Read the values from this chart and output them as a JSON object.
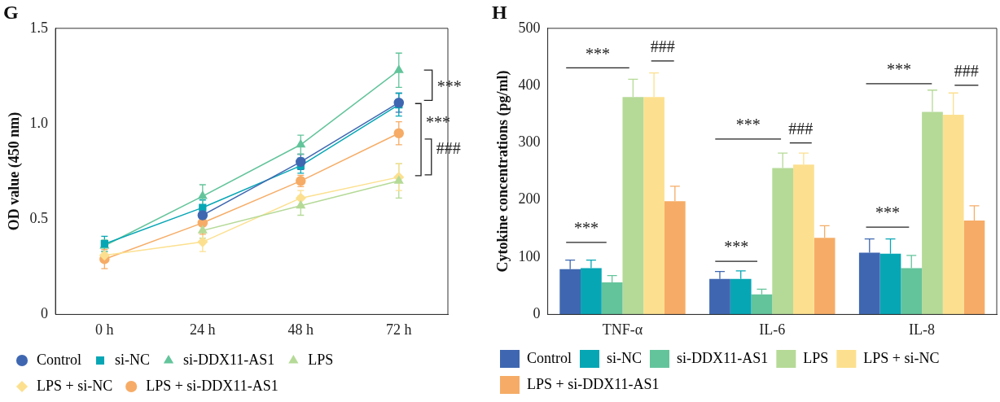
{
  "chart_data": [
    {
      "type": "line",
      "title": "G",
      "ylabel": "OD value (450 nm)",
      "categories": [
        "0 h",
        "24 h",
        "48 h",
        "72 h"
      ],
      "ylim": [
        0,
        1.5
      ],
      "yticks": [
        0,
        0.5,
        {
          "value": 1,
          "label": "1.0"
        },
        1.5
      ],
      "grid": false,
      "legend": "bottom",
      "line_style": "solid",
      "series": [
        {
          "name": "Control",
          "color": "#3f67b1",
          "marker": "circle",
          "values": [
            null,
            0.52,
            0.8,
            1.11
          ],
          "errors": [
            null,
            null,
            0.04,
            0.05
          ]
        },
        {
          "name": "si-NC",
          "color": "#07a6b5",
          "marker": "square",
          "values": [
            0.37,
            0.56,
            0.78,
            1.1
          ],
          "errors": [
            0.04,
            0.04,
            0.04,
            0.06
          ]
        },
        {
          "name": "si-DDX11-AS1",
          "color": "#63c49b",
          "marker": "triangle",
          "values": [
            0.36,
            0.62,
            0.89,
            1.28
          ],
          "errors": [
            0.03,
            0.06,
            0.05,
            0.09
          ]
        },
        {
          "name": "LPS",
          "color": "#b5da97",
          "marker": "triangle",
          "values": [
            null,
            0.44,
            0.57,
            0.7
          ],
          "errors": [
            null,
            0.04,
            0.05,
            0.09
          ]
        },
        {
          "name": "LPS + si-NC",
          "color": "#fce08f",
          "marker": "diamond",
          "values": [
            0.31,
            0.38,
            0.61,
            0.72
          ],
          "errors": [
            null,
            0.05,
            0.04,
            0.07
          ]
        },
        {
          "name": "LPS + si-DDX11-AS1",
          "color": "#f6ac66",
          "marker": "circle",
          "values": [
            0.29,
            0.48,
            0.7,
            0.95
          ],
          "errors": [
            0.05,
            0.06,
            0.03,
            0.06
          ]
        }
      ],
      "annotations": [
        {
          "text": "***",
          "x": "72 h",
          "y": 1.19
        },
        {
          "text": "***",
          "x": "72 h",
          "y": 1.0
        },
        "###"
      ]
    },
    {
      "type": "bar",
      "title": "H",
      "ylabel": "Cytokine concentrations (pg/ml)",
      "categories": [
        "TNF-α",
        "IL-6",
        "IL-8"
      ],
      "ylim": [
        0,
        500
      ],
      "yticks": [
        0,
        100,
        200,
        300,
        400,
        500
      ],
      "grid": false,
      "legend": "bottom",
      "series": [
        {
          "name": "Control",
          "color": "#3f67b1",
          "values": [
            79,
            62,
            108
          ],
          "errors": [
            16,
            13,
            24
          ]
        },
        {
          "name": "si-NC",
          "color": "#07a6b5",
          "values": [
            81,
            62,
            106
          ],
          "errors": [
            14,
            14,
            26
          ]
        },
        {
          "name": "si-DDX11-AS1",
          "color": "#63c49b",
          "values": [
            56,
            35,
            81
          ],
          "errors": [
            12,
            9,
            22
          ]
        },
        {
          "name": "LPS",
          "color": "#b5da97",
          "values": [
            380,
            256,
            354
          ],
          "errors": [
            31,
            26,
            38
          ]
        },
        {
          "name": "LPS + si-NC",
          "color": "#fce08f",
          "values": [
            380,
            262,
            349
          ],
          "errors": [
            42,
            20,
            38
          ]
        },
        {
          "name": "LPS + si-DDX11-AS1",
          "color": "#f6ac66",
          "values": [
            198,
            134,
            164
          ],
          "errors": [
            26,
            21,
            26
          ]
        }
      ],
      "annotations": [
        "***",
        "***",
        "###",
        "***",
        "***",
        "###",
        "***",
        "***",
        "###"
      ]
    }
  ]
}
